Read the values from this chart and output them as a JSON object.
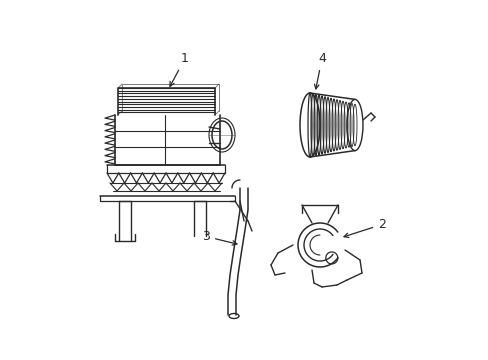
{
  "background_color": "#ffffff",
  "line_color": "#2a2a2a",
  "line_width": 1.0,
  "fig_width": 4.89,
  "fig_height": 3.6,
  "dpi": 100
}
